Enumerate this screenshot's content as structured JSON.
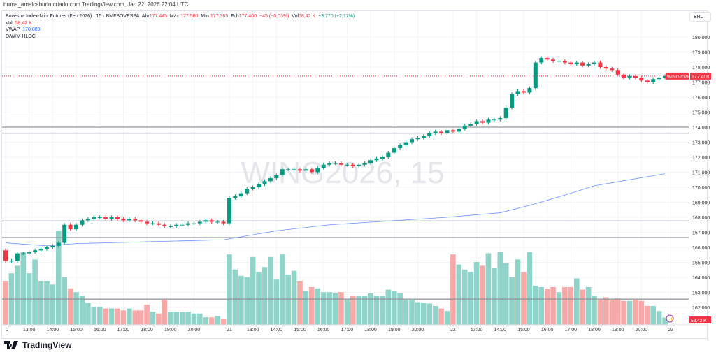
{
  "caption": "bruna_amalcaburio criado com TradingView.com, Jan 22, 2026 22:04 UTC",
  "legend": {
    "symbol": "Bovespa Index-Mini Futures (Feb 2026) · 15 · BMFBOVESPA",
    "open_label": "Abr",
    "open": "177.445",
    "high_label": "Máx.",
    "high": "177.580",
    "low_label": "Mín.",
    "low": "177.365",
    "close_label": "Fch",
    "close": "177.400",
    "change": "−45 (−0,03%)",
    "vol_label": "Vol",
    "vol": "58,42 K",
    "change2": "+3.770 (+2,17%)",
    "vol_row_label": "Vol",
    "vol_row": "58,42 K",
    "vwap_label": "VWAP",
    "vwap": "170.889",
    "dwm": "D/W/M HLOC"
  },
  "currency": "BRL",
  "watermark": "WING2026, 15",
  "symbol_tag": "WING2026",
  "last_price": "177.400",
  "vol_tag": "58,42 K",
  "brand": "TradingView",
  "colors": {
    "up": "#089981",
    "down": "#f23645",
    "vol_up": "#8fd3c9",
    "vol_down": "#f7a9a7",
    "vwap": "#2962ff"
  },
  "chart_data": {
    "type": "candlestick",
    "price_ticks": [
      "162.000",
      "163.000",
      "164.000",
      "165.000",
      "166.000",
      "167.000",
      "168.000",
      "169.000",
      "170.000",
      "171.000",
      "172.000",
      "173.000",
      "174.000",
      "175.000",
      "176.000",
      "177.000",
      "178.000",
      "179.000",
      "180.000"
    ],
    "first_open": 165.8,
    "closes": [
      165.1,
      165.1,
      165.6,
      165.6,
      165.7,
      165.8,
      165.9,
      166.0,
      166.1,
      166.3,
      167.5,
      167.2,
      167.5,
      167.8,
      167.9,
      168.0,
      168.0,
      167.9,
      168.0,
      167.9,
      167.8,
      167.9,
      167.8,
      167.7,
      167.6,
      167.6,
      167.5,
      167.4,
      167.4,
      167.5,
      167.5,
      167.6,
      167.6,
      167.7,
      167.8,
      167.7,
      167.7,
      167.6,
      169.3,
      169.4,
      169.6,
      169.9,
      170.0,
      170.2,
      170.4,
      170.6,
      170.8,
      171.2,
      171.2,
      171.2,
      171.1,
      171.2,
      171.0,
      171.3,
      171.5,
      171.6,
      171.6,
      171.5,
      171.5,
      171.4,
      171.5,
      171.6,
      171.8,
      171.9,
      172.0,
      172.3,
      172.6,
      172.8,
      173.0,
      173.2,
      173.3,
      173.4,
      173.6,
      173.7,
      173.6,
      173.8,
      173.7,
      173.9,
      174.1,
      174.2,
      174.4,
      174.3,
      174.5,
      174.5,
      174.6,
      175.3,
      176.2,
      176.4,
      176.3,
      176.6,
      178.3,
      178.6,
      178.5,
      178.4,
      178.4,
      178.3,
      178.2,
      178.3,
      178.1,
      178.2,
      178.3,
      178.0,
      177.9,
      177.8,
      177.5,
      177.3,
      177.4,
      177.3,
      177.1,
      177.0,
      177.2,
      177.3,
      177.4
    ],
    "volumes_k": [
      350,
      410,
      470,
      580,
      410,
      520,
      350,
      350,
      320,
      750,
      380,
      290,
      260,
      230,
      175,
      145,
      145,
      130,
      130,
      130,
      115,
      130,
      115,
      115,
      160,
      105,
      90,
      200,
      105,
      105,
      105,
      105,
      90,
      90,
      60,
      60,
      70,
      50,
      560,
      440,
      390,
      380,
      540,
      420,
      460,
      540,
      360,
      560,
      400,
      430,
      350,
      270,
      300,
      290,
      260,
      260,
      250,
      260,
      200,
      230,
      230,
      230,
      250,
      230,
      230,
      280,
      270,
      250,
      200,
      200,
      180,
      175,
      170,
      150,
      130,
      110,
      560,
      480,
      440,
      420,
      500,
      470,
      570,
      450,
      580,
      490,
      380,
      520,
      420,
      580,
      310,
      300,
      290,
      300,
      260,
      300,
      300,
      370,
      280,
      300,
      230,
      200,
      220,
      200,
      210,
      190,
      190,
      200,
      190,
      150,
      150,
      110,
      58
    ],
    "vwap": [
      [
        0,
        166.3
      ],
      [
        7,
        166.1
      ],
      [
        12,
        166.25
      ],
      [
        37,
        166.5
      ],
      [
        46,
        167.1
      ],
      [
        55,
        167.5
      ],
      [
        75,
        168.0
      ],
      [
        84,
        168.3
      ],
      [
        90,
        168.9
      ],
      [
        96,
        169.6
      ],
      [
        100,
        170.1
      ],
      [
        112,
        170.9
      ]
    ],
    "levels": [
      174.0,
      173.6,
      167.75,
      166.65,
      162.55
    ],
    "time_labels": [
      [
        0,
        "0"
      ],
      [
        4,
        "13:00"
      ],
      [
        8,
        "14:00"
      ],
      [
        12,
        "15:00"
      ],
      [
        16,
        "16:00"
      ],
      [
        20,
        "17:00"
      ],
      [
        24,
        "18:00"
      ],
      [
        28,
        "19:00"
      ],
      [
        32,
        "20:00"
      ],
      [
        38,
        "21"
      ],
      [
        42,
        "13:00"
      ],
      [
        46,
        "14:00"
      ],
      [
        50,
        "15:00"
      ],
      [
        54,
        "16:00"
      ],
      [
        58,
        "17:00"
      ],
      [
        62,
        "18:00"
      ],
      [
        66,
        "19:00"
      ],
      [
        70,
        "20:00"
      ],
      [
        76,
        "22"
      ],
      [
        80,
        "13:00"
      ],
      [
        84,
        "14:00"
      ],
      [
        88,
        "15:00"
      ],
      [
        92,
        "16:00"
      ],
      [
        96,
        "17:00"
      ],
      [
        100,
        "18:00"
      ],
      [
        104,
        "19:00"
      ],
      [
        108,
        "20:00"
      ],
      [
        113,
        "23"
      ]
    ]
  }
}
